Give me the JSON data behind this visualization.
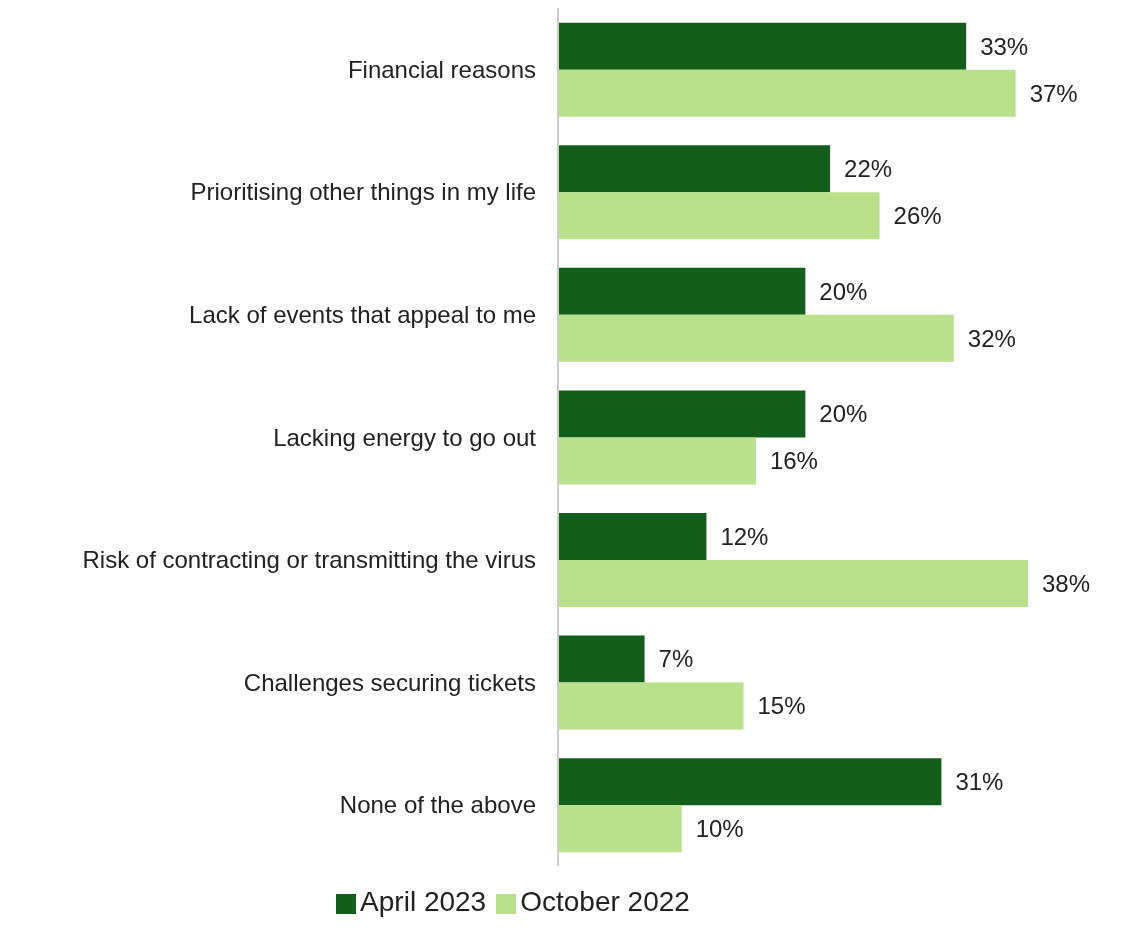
{
  "chart_data": {
    "type": "bar",
    "orientation": "horizontal",
    "categories": [
      "Financial reasons",
      "Prioritising other things in my life",
      "Lack of events that appeal to me",
      "Lacking energy to go out",
      "Risk of contracting or transmitting the virus",
      "Challenges securing tickets",
      "None of the above"
    ],
    "series": [
      {
        "name": "April 2023",
        "color": "#135e1a",
        "values": [
          33,
          22,
          20,
          20,
          12,
          7,
          31
        ],
        "value_labels": [
          "33%",
          "22%",
          "20%",
          "20%",
          "12%",
          "7%",
          "31%"
        ]
      },
      {
        "name": "October 2022",
        "color": "#b9e08a",
        "values": [
          37,
          26,
          32,
          16,
          38,
          15,
          10
        ],
        "value_labels": [
          "37%",
          "26%",
          "32%",
          "16%",
          "38%",
          "15%",
          "10%"
        ]
      }
    ],
    "legend": "bottom",
    "tick_labels": "y"
  }
}
